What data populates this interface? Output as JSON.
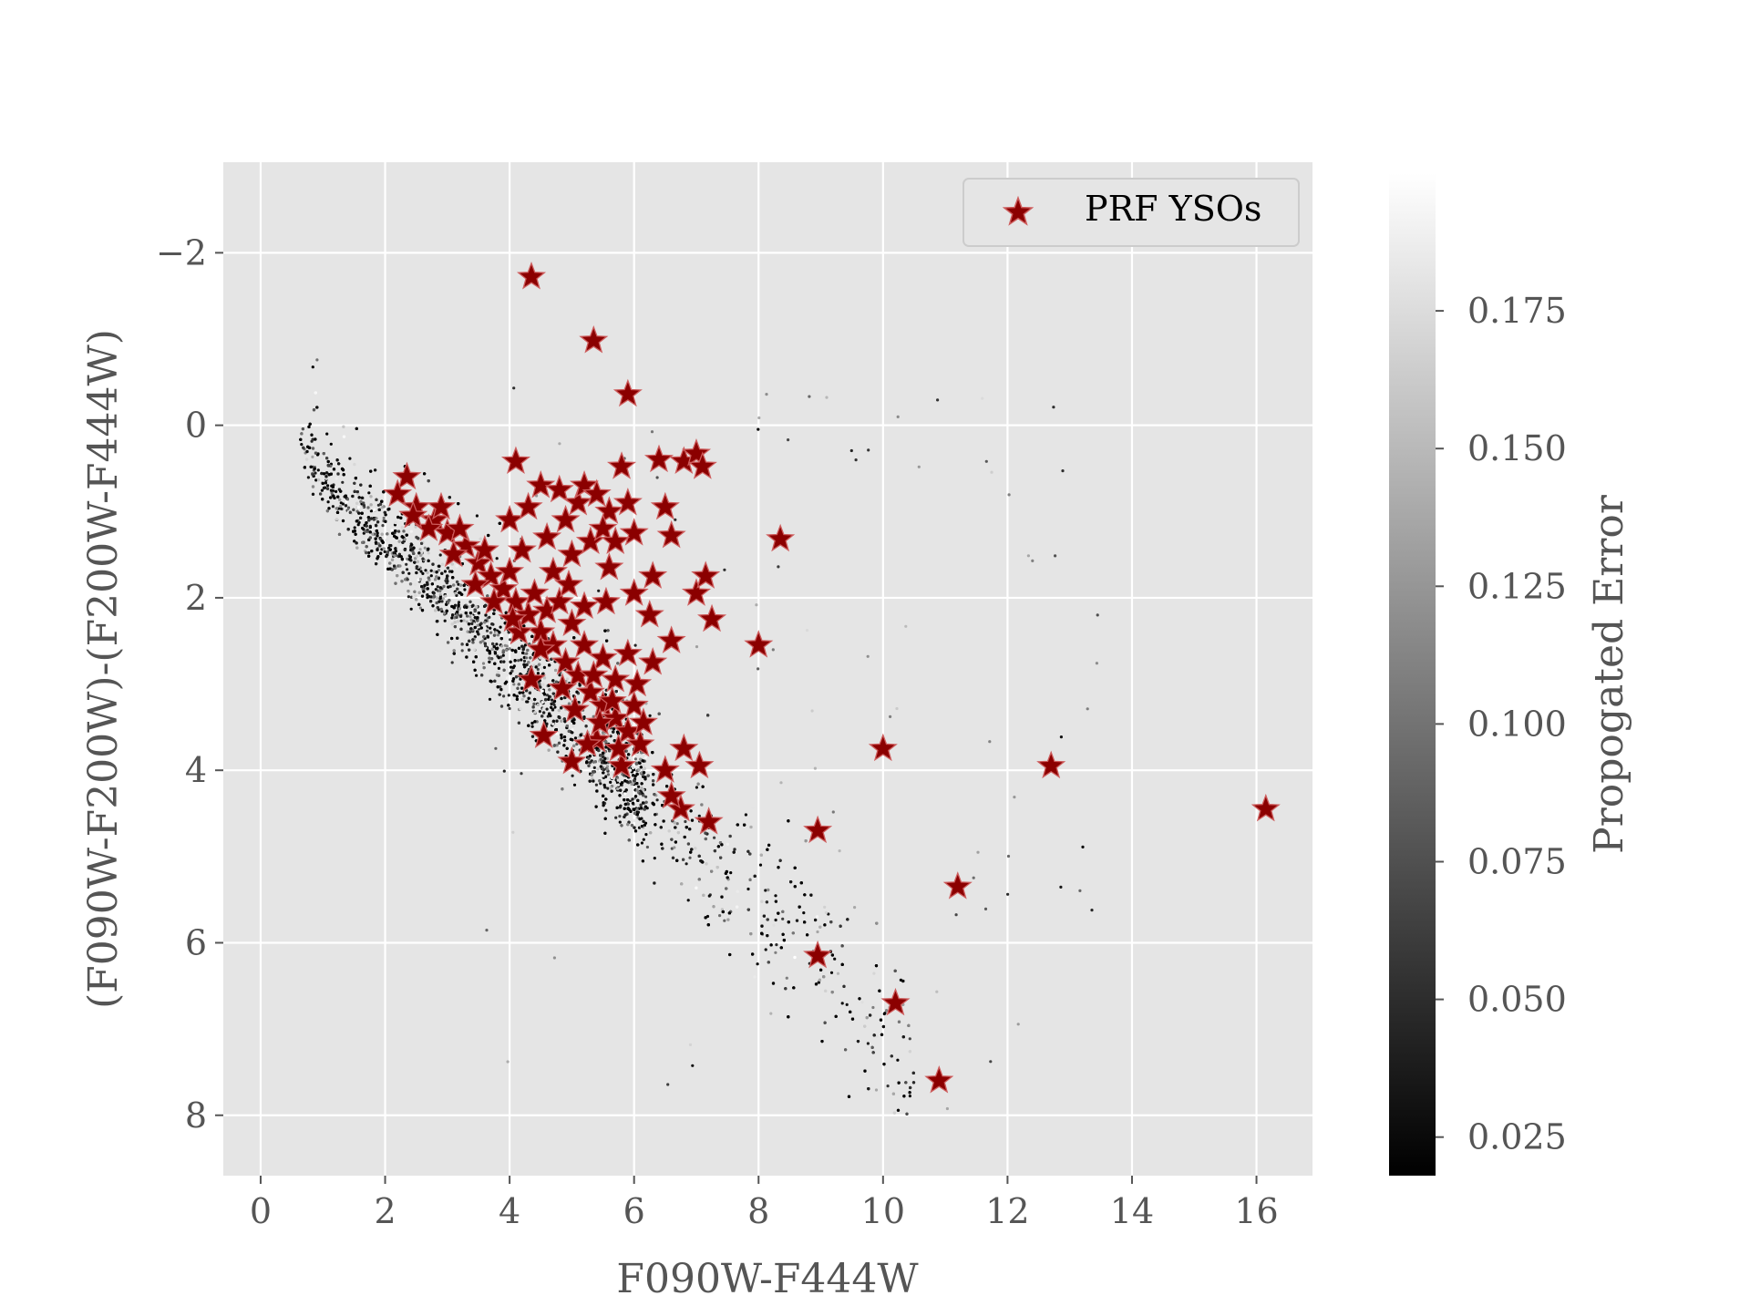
{
  "chart_data": {
    "type": "scatter",
    "xlabel": "F090W-F444W",
    "ylabel": "(F090W-F200W)-(F200W-F444W)",
    "xlim": [
      -0.6,
      16.9
    ],
    "ylim": [
      8.7,
      -3.05
    ],
    "y_inverted": true,
    "grid": true,
    "background": "#e5e5e5",
    "xticks": [
      0,
      2,
      4,
      6,
      8,
      10,
      12,
      14,
      16
    ],
    "yticks": [
      -2,
      0,
      2,
      4,
      6,
      8
    ],
    "xtick_labels": [
      "0",
      "2",
      "4",
      "6",
      "8",
      "10",
      "12",
      "14",
      "16"
    ],
    "ytick_labels": [
      "−2",
      "0",
      "2",
      "4",
      "6",
      "8"
    ],
    "legend": {
      "position": "top-right",
      "entries": [
        {
          "label": "PRF YSOs",
          "marker": "star",
          "color": "#8b0000"
        }
      ]
    },
    "colorbar": {
      "label": "Propogated Error",
      "range": [
        0.018,
        0.2
      ],
      "ticks": [
        0.025,
        0.05,
        0.075,
        0.1,
        0.125,
        0.15,
        0.175
      ],
      "tick_labels": [
        "0.025",
        "0.050",
        "0.075",
        "0.100",
        "0.125",
        "0.150",
        "0.175"
      ],
      "colormap": "gray"
    },
    "series": [
      {
        "name": "PRF YSOs",
        "marker": "star",
        "color": "#8b0000",
        "points": [
          [
            4.35,
            -1.72
          ],
          [
            5.35,
            -0.98
          ],
          [
            5.9,
            -0.36
          ],
          [
            4.1,
            0.42
          ],
          [
            5.8,
            0.48
          ],
          [
            6.4,
            0.4
          ],
          [
            6.8,
            0.42
          ],
          [
            7.0,
            0.33
          ],
          [
            7.1,
            0.48
          ],
          [
            8.35,
            1.32
          ],
          [
            2.35,
            0.6
          ],
          [
            2.2,
            0.8
          ],
          [
            2.5,
            0.95
          ],
          [
            2.8,
            1.1
          ],
          [
            3.0,
            1.25
          ],
          [
            3.3,
            1.4
          ],
          [
            3.5,
            1.6
          ],
          [
            3.7,
            1.75
          ],
          [
            3.9,
            1.9
          ],
          [
            4.1,
            2.05
          ],
          [
            4.3,
            2.2
          ],
          [
            4.5,
            2.4
          ],
          [
            4.7,
            2.55
          ],
          [
            4.9,
            2.75
          ],
          [
            5.1,
            2.9
          ],
          [
            5.3,
            3.1
          ],
          [
            5.5,
            3.25
          ],
          [
            5.7,
            3.4
          ],
          [
            5.9,
            3.55
          ],
          [
            6.1,
            3.7
          ],
          [
            4.0,
            1.1
          ],
          [
            4.3,
            0.95
          ],
          [
            4.5,
            0.7
          ],
          [
            4.8,
            0.75
          ],
          [
            5.1,
            0.9
          ],
          [
            5.2,
            0.7
          ],
          [
            5.4,
            0.8
          ],
          [
            5.6,
            1.0
          ],
          [
            5.9,
            0.9
          ],
          [
            6.0,
            1.25
          ],
          [
            6.5,
            0.95
          ],
          [
            6.6,
            1.28
          ],
          [
            5.0,
            1.5
          ],
          [
            5.3,
            1.35
          ],
          [
            5.6,
            1.65
          ],
          [
            6.0,
            1.95
          ],
          [
            6.3,
            1.75
          ],
          [
            6.25,
            2.2
          ],
          [
            6.6,
            2.5
          ],
          [
            6.3,
            2.75
          ],
          [
            7.0,
            1.95
          ],
          [
            7.15,
            1.75
          ],
          [
            7.25,
            2.25
          ],
          [
            8.0,
            2.55
          ],
          [
            4.35,
            2.95
          ],
          [
            4.55,
            3.6
          ],
          [
            5.0,
            3.9
          ],
          [
            5.4,
            3.65
          ],
          [
            5.8,
            3.95
          ],
          [
            6.5,
            4.0
          ],
          [
            6.8,
            3.75
          ],
          [
            6.75,
            4.45
          ],
          [
            7.05,
            3.95
          ],
          [
            7.2,
            4.6
          ],
          [
            6.6,
            4.3
          ],
          [
            10.0,
            3.75
          ],
          [
            12.7,
            3.95
          ],
          [
            16.15,
            4.45
          ],
          [
            8.95,
            4.7
          ],
          [
            11.2,
            5.35
          ],
          [
            8.95,
            6.15
          ],
          [
            10.2,
            6.7
          ],
          [
            10.9,
            7.6
          ],
          [
            2.7,
            1.2
          ],
          [
            3.1,
            1.5
          ],
          [
            3.6,
            1.45
          ],
          [
            4.0,
            1.7
          ],
          [
            4.4,
            1.95
          ],
          [
            4.6,
            2.15
          ],
          [
            4.8,
            2.05
          ],
          [
            5.0,
            2.3
          ],
          [
            5.2,
            2.55
          ],
          [
            5.5,
            2.7
          ],
          [
            5.7,
            2.95
          ],
          [
            6.0,
            3.25
          ],
          [
            5.45,
            3.45
          ],
          [
            5.25,
            3.7
          ],
          [
            5.75,
            3.75
          ],
          [
            6.15,
            3.45
          ],
          [
            5.9,
            2.65
          ],
          [
            4.2,
            1.45
          ],
          [
            4.6,
            1.3
          ],
          [
            4.9,
            1.1
          ],
          [
            5.5,
            1.2
          ],
          [
            5.7,
            1.35
          ],
          [
            4.7,
            1.7
          ],
          [
            4.95,
            1.85
          ],
          [
            5.2,
            2.1
          ],
          [
            5.55,
            2.05
          ],
          [
            4.15,
            2.4
          ],
          [
            4.5,
            2.6
          ],
          [
            4.85,
            3.05
          ],
          [
            5.05,
            3.3
          ],
          [
            5.35,
            2.9
          ],
          [
            5.65,
            3.2
          ],
          [
            6.05,
            3.0
          ],
          [
            2.45,
            1.05
          ],
          [
            2.9,
            0.95
          ],
          [
            3.2,
            1.2
          ],
          [
            3.45,
            1.85
          ],
          [
            3.75,
            2.05
          ],
          [
            4.05,
            2.25
          ]
        ]
      }
    ]
  }
}
